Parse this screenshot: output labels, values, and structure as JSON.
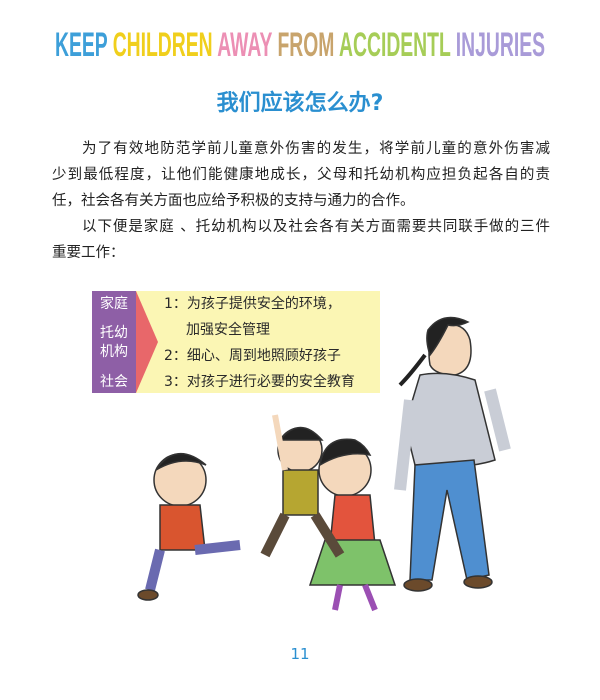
{
  "header": {
    "words": [
      {
        "text": "KEEP",
        "color": "#3d9fd9"
      },
      {
        "text": "CHILDREN",
        "color": "#f0cf1c"
      },
      {
        "text": "AWAY",
        "color": "#ec8fb4"
      },
      {
        "text": "FROM",
        "color": "#c8a46c"
      },
      {
        "text": "ACCIDENTL",
        "color": "#a6cd57"
      },
      {
        "text": "INJURIES",
        "color": "#a99bd8"
      }
    ]
  },
  "section": {
    "title": "我们应该怎么办?",
    "paragraphs": [
      {
        "lines": [
          "为了有效地防范学前儿童意外伤害的发生，将学前儿童的意外伤害减",
          "少到最低程度，让他们能健康地成长，父母和托幼机构应担负起各自的责",
          "任，社会各有关方面也应给予积极的支持与通力的合作。"
        ]
      },
      {
        "lines": [
          "以下便是家庭 、托幼机构以及社会各有关方面需要共同联手做的三件",
          "重要工作："
        ]
      }
    ]
  },
  "box": {
    "labels": [
      "家庭",
      "托幼",
      "机构",
      "社会"
    ],
    "items": [
      "1：为孩子提供安全的环境，",
      "加强安全管理",
      "2：细心、周到地照顾好孩子",
      "3：对孩子进行必要的安全教育"
    ]
  },
  "page_number": "11"
}
